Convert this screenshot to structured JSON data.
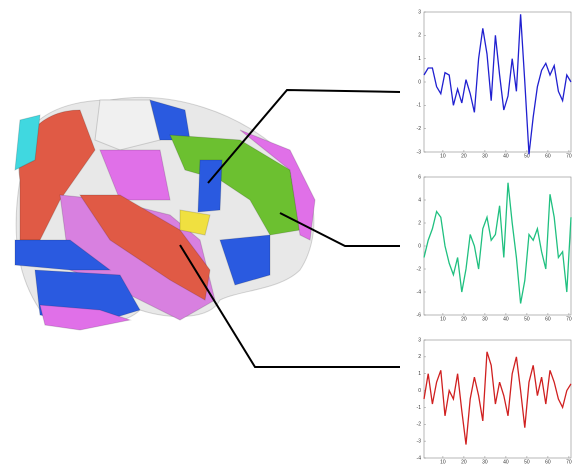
{
  "chart_data": [
    {
      "type": "line",
      "x": [
        1,
        3,
        5,
        7,
        9,
        11,
        13,
        15,
        17,
        19,
        21,
        23,
        25,
        27,
        29,
        31,
        33,
        35,
        37,
        39,
        41,
        43,
        45,
        47,
        49,
        51,
        53,
        55,
        57,
        59,
        61,
        63,
        65,
        67,
        69,
        71
      ],
      "series": [
        {
          "color": "#2020d0",
          "values": [
            0.3,
            0.6,
            0.6,
            -0.2,
            -0.5,
            0.4,
            0.3,
            -1.0,
            -0.3,
            -0.9,
            0.1,
            -0.5,
            -1.3,
            1.0,
            2.3,
            1.2,
            -0.8,
            2.0,
            0.3,
            -1.2,
            -0.6,
            1.0,
            -0.4,
            2.9,
            0.0,
            -3.1,
            -1.5,
            -0.2,
            0.5,
            0.8,
            0.3,
            0.7,
            -0.4,
            -0.8,
            0.3,
            0.0
          ]
        }
      ],
      "xlim": [
        1,
        71
      ],
      "xticks": [
        10,
        20,
        30,
        40,
        50,
        60,
        70
      ],
      "ylim": [
        -3,
        3
      ],
      "yticks": [
        -3,
        -2,
        -1,
        0,
        1,
        2,
        3
      ]
    },
    {
      "type": "line",
      "x": [
        1,
        3,
        5,
        7,
        9,
        11,
        13,
        15,
        17,
        19,
        21,
        23,
        25,
        27,
        29,
        31,
        33,
        35,
        37,
        39,
        41,
        43,
        45,
        47,
        49,
        51,
        53,
        55,
        57,
        59,
        61,
        63,
        65,
        67,
        69,
        71
      ],
      "series": [
        {
          "color": "#20c080",
          "values": [
            -1,
            0.5,
            1.5,
            3,
            2.5,
            0,
            -1.5,
            -2.5,
            -1,
            -4,
            -2,
            1,
            0,
            -2,
            1.5,
            2.5,
            0.5,
            1,
            3.5,
            -1,
            5.5,
            2,
            -1,
            -5,
            -3,
            1,
            0.5,
            1.5,
            -0.5,
            -2,
            4.5,
            2.5,
            -1,
            -0.5,
            -4,
            2.5
          ]
        }
      ],
      "xlim": [
        1,
        71
      ],
      "xticks": [
        10,
        20,
        30,
        40,
        50,
        60,
        70
      ],
      "ylim": [
        -6,
        6
      ],
      "yticks": [
        -6,
        -4,
        -2,
        0,
        2,
        4,
        6
      ]
    },
    {
      "type": "line",
      "x": [
        1,
        3,
        5,
        7,
        9,
        11,
        13,
        15,
        17,
        19,
        21,
        23,
        25,
        27,
        29,
        31,
        33,
        35,
        37,
        39,
        41,
        43,
        45,
        47,
        49,
        51,
        53,
        55,
        57,
        59,
        61,
        63,
        65,
        67,
        69,
        71
      ],
      "series": [
        {
          "color": "#d02020",
          "values": [
            -0.5,
            1.0,
            -0.8,
            0.5,
            1.2,
            -1.5,
            0.0,
            -0.5,
            1.0,
            -1.2,
            -3.2,
            -0.5,
            0.8,
            -0.3,
            -1.8,
            2.3,
            1.5,
            -0.8,
            0.5,
            -0.3,
            -1.5,
            1.0,
            2.0,
            0.0,
            -2.2,
            0.5,
            1.5,
            -0.3,
            0.8,
            -0.8,
            1.2,
            0.5,
            -0.5,
            -1.0,
            0.0,
            0.4
          ]
        }
      ],
      "xlim": [
        1,
        71
      ],
      "xticks": [
        10,
        20,
        30,
        40,
        50,
        60,
        70
      ],
      "ylim": [
        -4,
        3
      ],
      "yticks": [
        -4,
        -3,
        -2,
        -1,
        0,
        1,
        2,
        3
      ]
    }
  ]
}
